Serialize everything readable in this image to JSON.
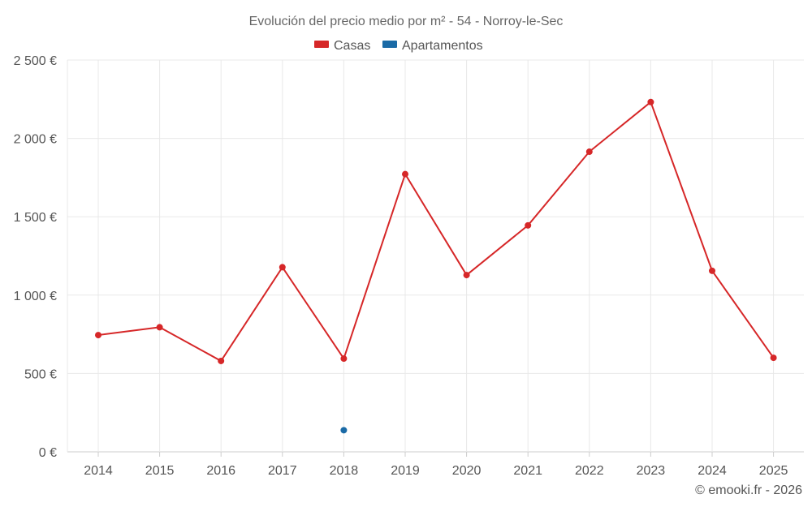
{
  "chart_data": {
    "type": "line",
    "title": "Evolución del precio medio por m² - 54 - Norroy-le-Sec",
    "x": [
      "2014",
      "2015",
      "2016",
      "2017",
      "2018",
      "2019",
      "2020",
      "2021",
      "2022",
      "2023",
      "2024",
      "2025"
    ],
    "yticks": [
      0,
      500,
      1000,
      1500,
      2000,
      2500
    ],
    "ytick_labels": [
      "0 €",
      "500 €",
      "1 000 €",
      "1 500 €",
      "2 000 €",
      "2 500 €"
    ],
    "ylim": [
      0,
      2500
    ],
    "grid": true,
    "legend_position": "top-center",
    "series": [
      {
        "name": "Casas",
        "color": "#d62728",
        "values": [
          745,
          795,
          580,
          1178,
          595,
          1772,
          1128,
          1445,
          1915,
          2232,
          1155,
          600
        ]
      },
      {
        "name": "Apartamentos",
        "color": "#1a6aa6",
        "values": [
          null,
          null,
          null,
          null,
          138,
          null,
          null,
          null,
          null,
          null,
          null,
          null
        ]
      }
    ],
    "footer": "© emooki.fr - 2026"
  }
}
